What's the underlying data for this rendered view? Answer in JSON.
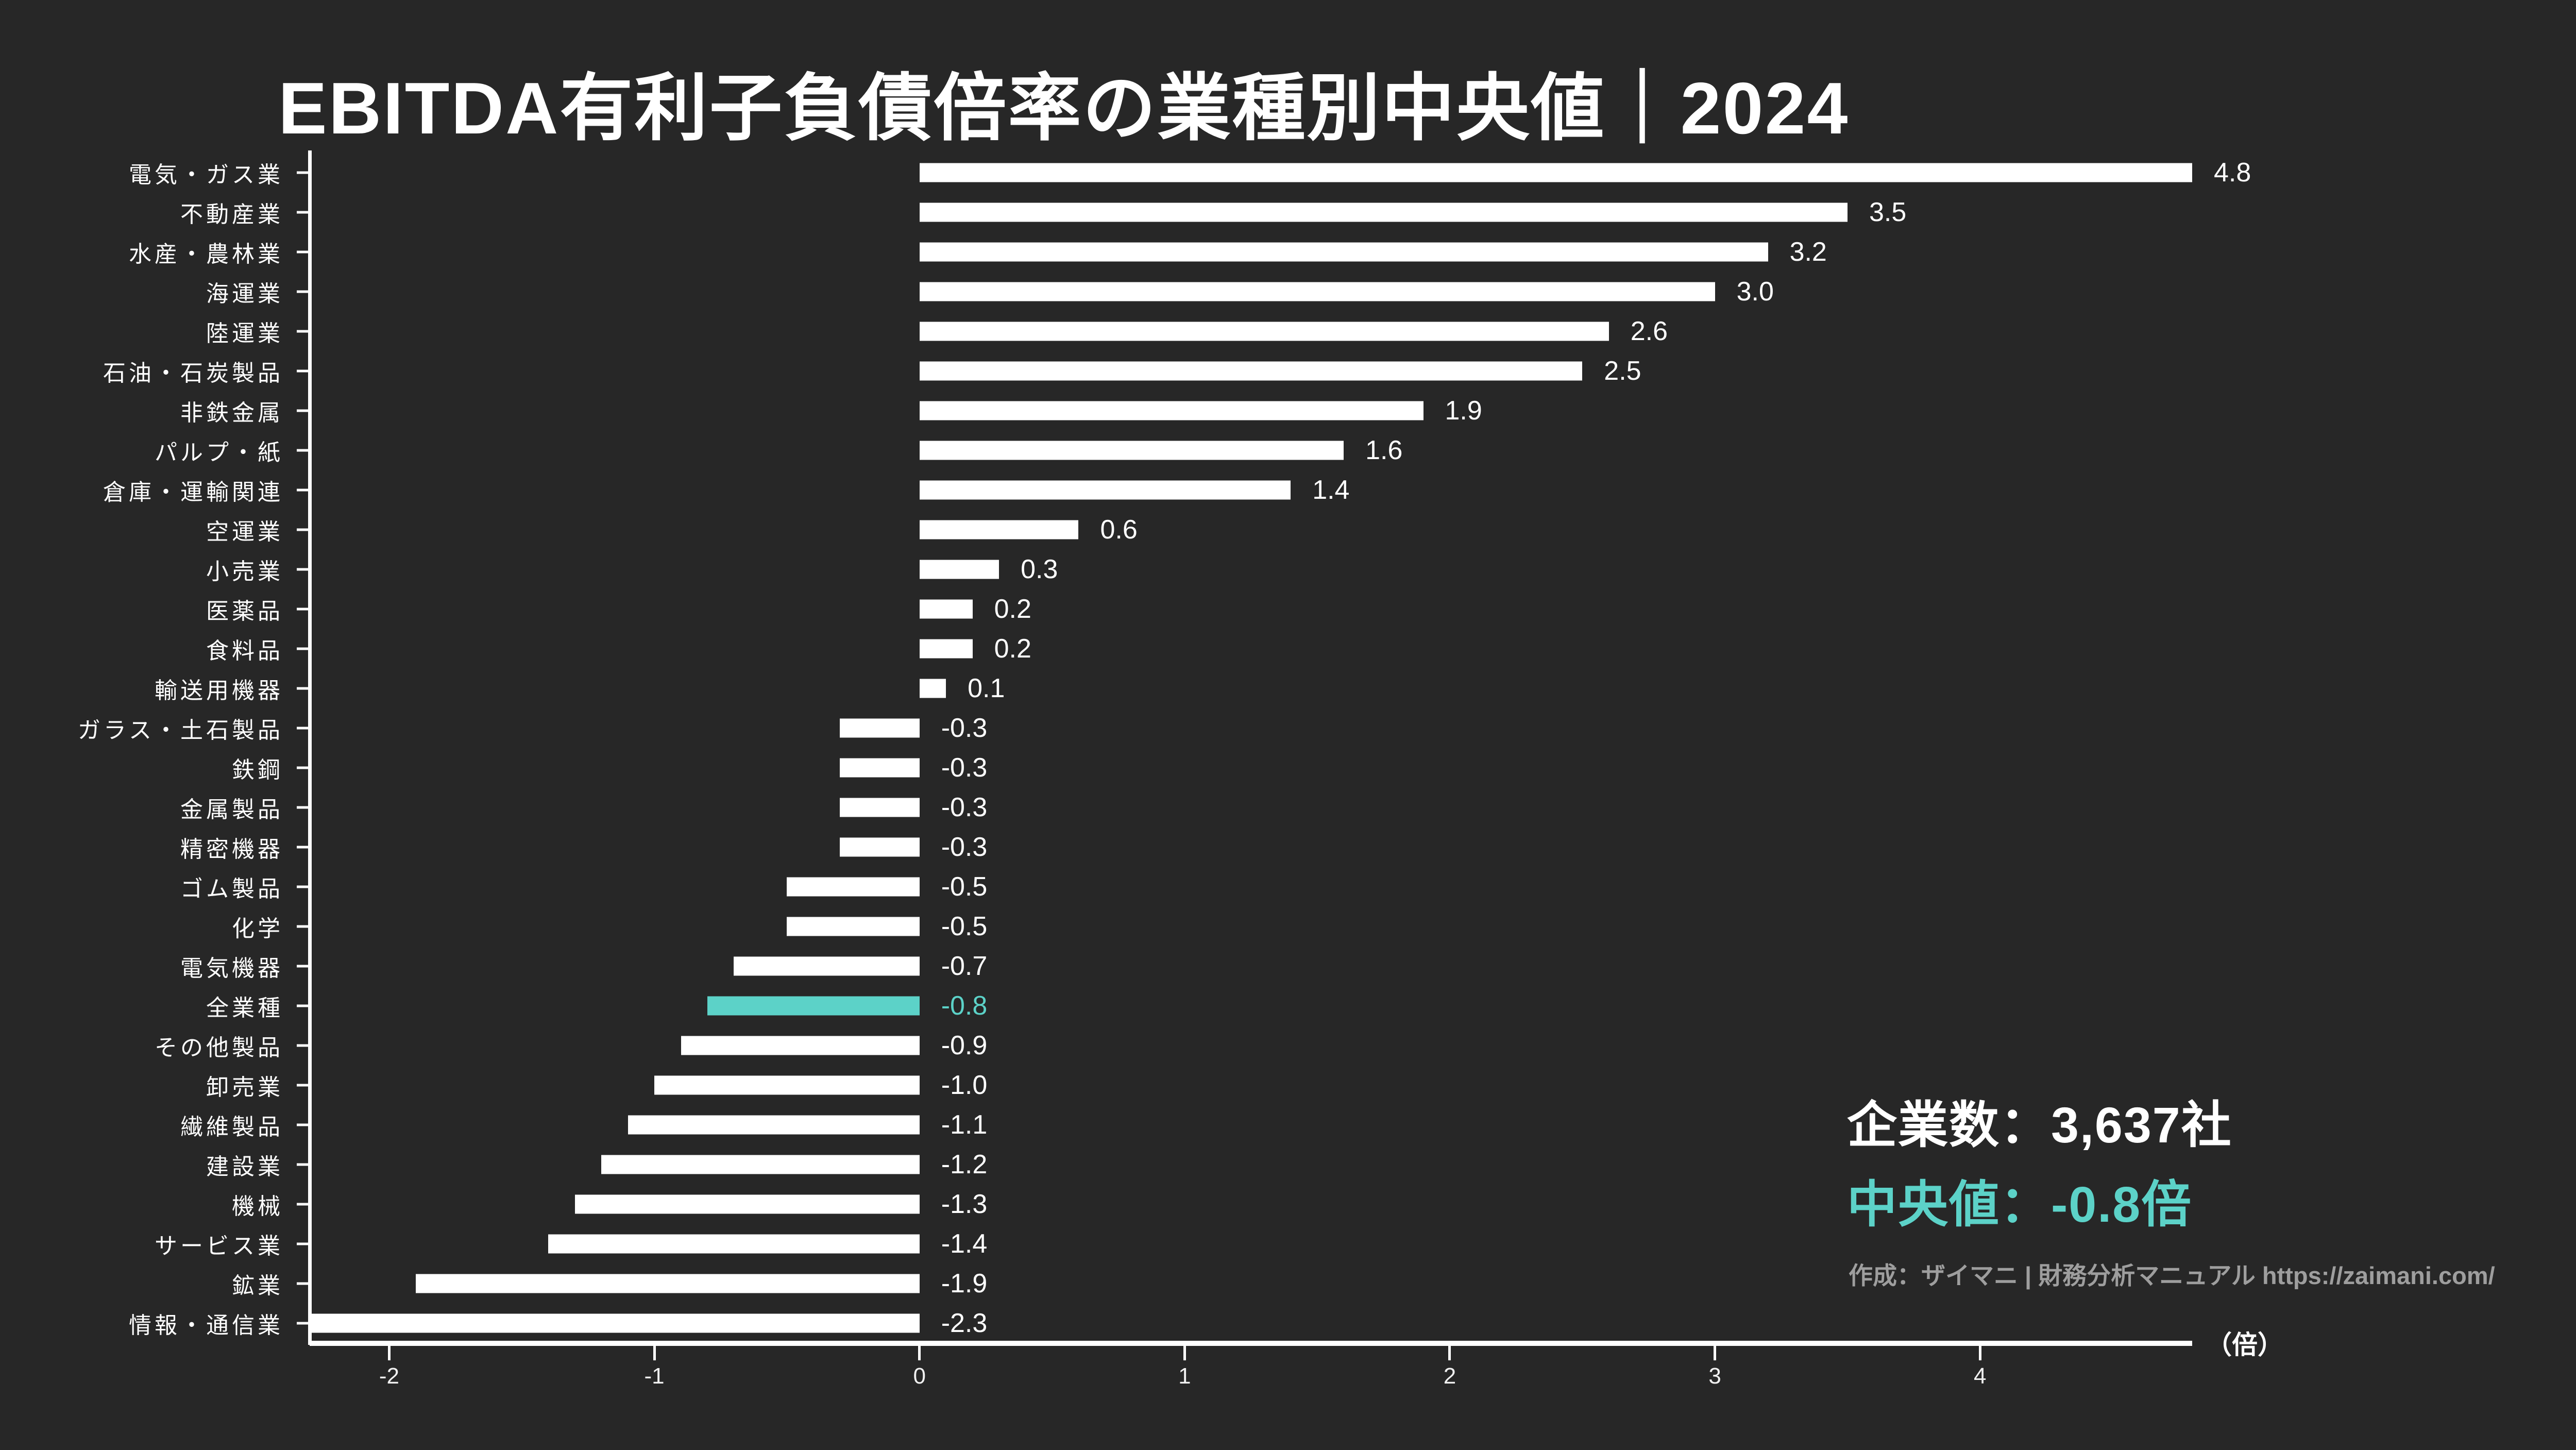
{
  "title": "EBITDA有利子負債倍率の業種別中央値｜2024",
  "colors": {
    "background": "#272727",
    "bar": "#FFFFFF",
    "highlight": "#5CD2C8",
    "axis": "#FFFFFF",
    "tick_label": "#F0F0F0",
    "credit_text": "#9E9E9E"
  },
  "chart_data": {
    "type": "bar",
    "orientation": "horizontal",
    "title": "EBITDA有利子負債倍率の業種別中央値｜2024",
    "unit_label": "（倍）",
    "xlim": [
      -2.3,
      4.8
    ],
    "x_ticks": [
      -2,
      -1,
      0,
      1,
      2,
      3,
      4
    ],
    "grid": false,
    "highlight_category": "全業種",
    "categories": [
      "電気・ガス業",
      "不動産業",
      "水産・農林業",
      "海運業",
      "陸運業",
      "石油・石炭製品",
      "非鉄金属",
      "パルプ・紙",
      "倉庫・運輸関連",
      "空運業",
      "小売業",
      "医薬品",
      "食料品",
      "輸送用機器",
      "ガラス・土石製品",
      "鉄鋼",
      "金属製品",
      "精密機器",
      "ゴム製品",
      "化学",
      "電気機器",
      "全業種",
      "その他製品",
      "卸売業",
      "繊維製品",
      "建設業",
      "機械",
      "サービス業",
      "鉱業",
      "情報・通信業"
    ],
    "values": [
      4.8,
      3.5,
      3.2,
      3.0,
      2.6,
      2.5,
      1.9,
      1.6,
      1.4,
      0.6,
      0.3,
      0.2,
      0.2,
      0.1,
      -0.3,
      -0.3,
      -0.3,
      -0.3,
      -0.5,
      -0.5,
      -0.7,
      -0.8,
      -0.9,
      -1.0,
      -1.1,
      -1.2,
      -1.3,
      -1.4,
      -1.9,
      -2.3
    ]
  },
  "stats": {
    "companies_label": "企業数：3,637社",
    "median_label": "中央値：-0.8倍",
    "credit": "作成：ザイマニ | 財務分析マニュアル https://zaimani.com/"
  }
}
